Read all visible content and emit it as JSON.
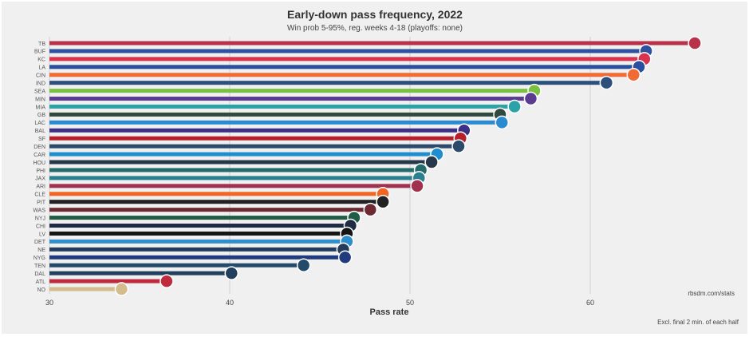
{
  "chart_data": {
    "type": "bar",
    "orientation": "horizontal",
    "title": "Early-down pass frequency, 2022",
    "subtitle": "Win prob 5-95%, reg. weeks 4-18 (playoffs: none)",
    "xlabel": "Pass rate",
    "ylabel": "",
    "xlim": [
      30,
      67
    ],
    "xticks": [
      30,
      40,
      50,
      60
    ],
    "grid": true,
    "source": "rbsdm.com/stats",
    "note": "Excl. final 2 min. of each half",
    "categories": [
      "TB",
      "BUF",
      "KC",
      "LA",
      "CIN",
      "IND",
      "SEA",
      "MIN",
      "MIA",
      "GB",
      "LAC",
      "BAL",
      "SF",
      "DEN",
      "CAR",
      "HOU",
      "PHI",
      "JAX",
      "ARI",
      "CLE",
      "PIT",
      "WAS",
      "NYJ",
      "CHI",
      "LV",
      "DET",
      "NE",
      "NYG",
      "TEN",
      "DAL",
      "ATL",
      "NO"
    ],
    "values": [
      65.8,
      63.1,
      63.0,
      62.7,
      62.4,
      60.9,
      56.9,
      56.7,
      55.8,
      55.0,
      55.1,
      53.0,
      52.8,
      52.7,
      51.5,
      51.2,
      50.6,
      50.5,
      50.4,
      48.5,
      48.5,
      47.8,
      46.9,
      46.7,
      46.5,
      46.5,
      46.3,
      46.4,
      44.1,
      40.1,
      36.5,
      34.0
    ],
    "colors": [
      "#b8334a",
      "#2e52a0",
      "#d9334f",
      "#2a4f9e",
      "#f26b35",
      "#2c4f7c",
      "#7ac142",
      "#5b3b91",
      "#2ba2a8",
      "#2f4a3f",
      "#2b8bd1",
      "#3b2f86",
      "#b5202b",
      "#2c4a6a",
      "#1f8ecf",
      "#26384a",
      "#266b6b",
      "#2b7f8e",
      "#a0324f",
      "#f26522",
      "#222222",
      "#6e2a32",
      "#215c45",
      "#1f2a44",
      "#151515",
      "#2e8fcc",
      "#233b5c",
      "#203c7e",
      "#234a6a",
      "#22405e",
      "#bf2b3d",
      "#d3bc8d"
    ]
  }
}
